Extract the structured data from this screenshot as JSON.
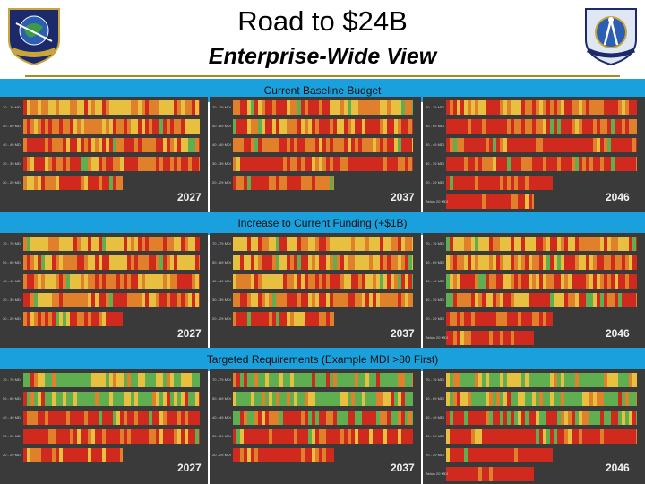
{
  "header": {
    "title": "Road to $24B",
    "subtitle": "Enterprise-Wide View",
    "left_logo_text": "AIR FORCE GLOBAL STRIKE / 9TH FORCE DIST",
    "right_logo_text": "AIR FORCE CIVIL ENGINEER CENTER"
  },
  "sections": [
    {
      "label": "Current Baseline Budget",
      "years": [
        "2027",
        "2037",
        "2046"
      ],
      "palette": "baseline"
    },
    {
      "label": "Increase to Current Funding (+$1B)",
      "years": [
        "2027",
        "2037",
        "2046"
      ],
      "palette": "increase"
    },
    {
      "label": "Targeted Requirements (Example MDI >80 First)",
      "years": [
        "2027",
        "2037",
        "2046"
      ],
      "palette": "targeted"
    }
  ],
  "row_labels": [
    "70 - 79 MDI",
    "50 - 69 MDI",
    "40 - 49 MDI",
    "30 - 39 MDI",
    "20 - 29 MDI",
    "Below 20 MDI"
  ],
  "colors": {
    "band": "#1aa0dc",
    "panel_bg": "#3a3a3a",
    "red": "#d02a1e",
    "orange": "#e0802a",
    "yellow": "#e8c040",
    "green": "#5fae50",
    "divider": "#b08a1e"
  }
}
